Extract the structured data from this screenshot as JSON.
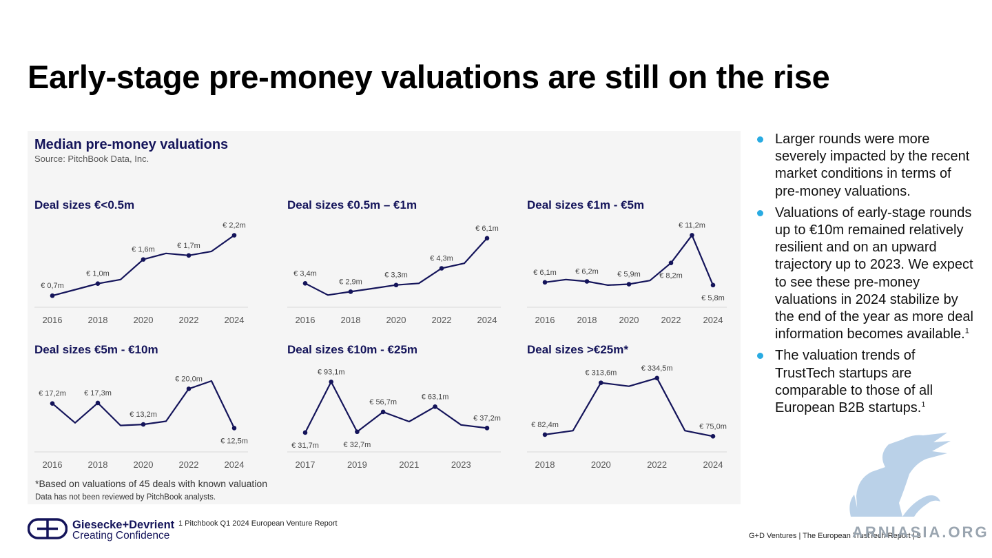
{
  "title": "Early-stage pre-money valuations are still on the rise",
  "panel": {
    "title": "Median pre-money valuations",
    "source": "Source: PitchBook Data, Inc.",
    "footnote1": "*Based on valuations of 45 deals with known valuation",
    "footnote2": "Data has not been reviewed by PitchBook analysts."
  },
  "colors": {
    "line": "#14145a",
    "axis": "#d9d9d9",
    "bullet": "#29abe2",
    "label": "#444444"
  },
  "chart_data": [
    {
      "type": "line",
      "title": "Deal sizes €<0.5m",
      "x": [
        2016,
        2017,
        2018,
        2019,
        2020,
        2021,
        2022,
        2023,
        2024
      ],
      "values": [
        0.7,
        0.85,
        1.0,
        1.1,
        1.6,
        1.75,
        1.7,
        1.8,
        2.2
      ],
      "xticks": [
        "2016",
        "2018",
        "2020",
        "2022",
        "2024"
      ],
      "ylim": [
        0.55,
        2.5
      ],
      "data_labels": [
        {
          "x": 2016,
          "text": "€ 0,7m",
          "pos": "above"
        },
        {
          "x": 2018,
          "text": "€ 1,0m",
          "pos": "above"
        },
        {
          "x": 2020,
          "text": "€ 1,6m",
          "pos": "above"
        },
        {
          "x": 2022,
          "text": "€ 1,7m",
          "pos": "above"
        },
        {
          "x": 2024,
          "text": "€ 2,2m",
          "pos": "above"
        }
      ]
    },
    {
      "type": "line",
      "title": "Deal sizes €0.5m – €1m",
      "x": [
        2016,
        2017,
        2018,
        2019,
        2020,
        2021,
        2022,
        2023,
        2024
      ],
      "values": [
        3.4,
        2.7,
        2.9,
        3.1,
        3.3,
        3.4,
        4.3,
        4.6,
        6.1
      ],
      "xticks": [
        "2016",
        "2018",
        "2020",
        "2022",
        "2024"
      ],
      "ylim": [
        2.3,
        7.0
      ],
      "data_labels": [
        {
          "x": 2016,
          "text": "€ 3,4m",
          "pos": "above"
        },
        {
          "x": 2018,
          "text": "€ 2,9m",
          "pos": "above"
        },
        {
          "x": 2020,
          "text": "€ 3,3m",
          "pos": "above"
        },
        {
          "x": 2022,
          "text": "€ 4,3m",
          "pos": "above"
        },
        {
          "x": 2024,
          "text": "€ 6,1m",
          "pos": "above"
        }
      ]
    },
    {
      "type": "line",
      "title": "Deal sizes €1m - €5m",
      "x": [
        2016,
        2017,
        2018,
        2019,
        2020,
        2021,
        2022,
        2023,
        2024
      ],
      "values": [
        6.1,
        6.4,
        6.2,
        5.8,
        5.9,
        6.3,
        8.2,
        11.2,
        5.8
      ],
      "xticks": [
        "2016",
        "2018",
        "2020",
        "2022",
        "2024"
      ],
      "ylim": [
        4.0,
        12.5
      ],
      "data_labels": [
        {
          "x": 2016,
          "text": "€ 6,1m",
          "pos": "above"
        },
        {
          "x": 2018,
          "text": "€ 6,2m",
          "pos": "above"
        },
        {
          "x": 2020,
          "text": "€ 5,9m",
          "pos": "above"
        },
        {
          "x": 2022,
          "text": "€ 8,2m",
          "pos": "below"
        },
        {
          "x": 2023,
          "text": "€ 11,2m",
          "pos": "above"
        },
        {
          "x": 2024,
          "text": "€ 5,8m",
          "pos": "below"
        }
      ]
    },
    {
      "type": "line",
      "title": "Deal sizes €5m - €10m",
      "x": [
        2016,
        2017,
        2018,
        2019,
        2020,
        2021,
        2022,
        2023,
        2024
      ],
      "values": [
        17.2,
        13.5,
        17.3,
        13.0,
        13.2,
        13.8,
        20.0,
        21.5,
        12.5
      ],
      "xticks": [
        "2016",
        "2018",
        "2020",
        "2022",
        "2024"
      ],
      "ylim": [
        9.0,
        24.0
      ],
      "data_labels": [
        {
          "x": 2016,
          "text": "€ 17,2m",
          "pos": "above"
        },
        {
          "x": 2018,
          "text": "€ 17,3m",
          "pos": "above"
        },
        {
          "x": 2020,
          "text": "€ 13,2m",
          "pos": "above"
        },
        {
          "x": 2022,
          "text": "€ 20,0m",
          "pos": "above"
        },
        {
          "x": 2024,
          "text": "€ 12,5m",
          "pos": "below"
        }
      ]
    },
    {
      "type": "line",
      "title": "Deal sizes €10m - €25m",
      "x": [
        2017,
        2018,
        2019,
        2020,
        2021,
        2022,
        2023,
        2024
      ],
      "values": [
        31.7,
        93.1,
        32.7,
        56.7,
        45.0,
        63.1,
        41.0,
        37.2
      ],
      "xticks": [
        "2017",
        "2019",
        "2021",
        "2023"
      ],
      "ylim": [
        15,
        110
      ],
      "data_labels": [
        {
          "x": 2017,
          "text": "€ 31,7m",
          "pos": "below"
        },
        {
          "x": 2018,
          "text": "€ 93,1m",
          "pos": "above"
        },
        {
          "x": 2019,
          "text": "€ 32,7m",
          "pos": "below"
        },
        {
          "x": 2020,
          "text": "€ 56,7m",
          "pos": "above"
        },
        {
          "x": 2022,
          "text": "€ 63,1m",
          "pos": "above"
        },
        {
          "x": 2024,
          "text": "€ 37,2m",
          "pos": "above"
        }
      ]
    },
    {
      "type": "line",
      "title": "Deal sizes >€25m*",
      "x": [
        2018,
        2019,
        2020,
        2021,
        2022,
        2023,
        2024
      ],
      "values": [
        82.4,
        100.0,
        313.6,
        298.0,
        334.5,
        100.0,
        75.0
      ],
      "xticks": [
        "2018",
        "2020",
        "2022",
        "2024"
      ],
      "ylim": [
        30,
        380
      ],
      "data_labels": [
        {
          "x": 2018,
          "text": "€ 82,4m",
          "pos": "above"
        },
        {
          "x": 2020,
          "text": "€ 313,6m",
          "pos": "above"
        },
        {
          "x": 2022,
          "text": "€ 334,5m",
          "pos": "above"
        },
        {
          "x": 2024,
          "text": "€ 75,0m",
          "pos": "above"
        }
      ]
    }
  ],
  "bullets": [
    {
      "text": "Larger rounds were more severely impacted by the recent market conditions in terms of pre-money valuations.",
      "sup": ""
    },
    {
      "text": "Valuations of early-stage rounds up to €10m remained relatively resilient and on an upward trajectory up to 2023. We expect to see these pre-money valuations in 2024 stabilize by the end of the year as more deal information becomes available.",
      "sup": "1"
    },
    {
      "text": "The valuation trends of TrustTech startups are comparable to those of all European B2B startups.",
      "sup": "1"
    }
  ],
  "footer": {
    "logo_line1": "Giesecke+Devrient",
    "logo_line2": "Creating Confidence",
    "footnote": "1 Pitchbook Q1 2024 European Venture Report",
    "right": "G+D Ventures  |  The European TrustTech Report  |  8"
  },
  "watermark": {
    "text": "ARNIASIA.ORG"
  }
}
